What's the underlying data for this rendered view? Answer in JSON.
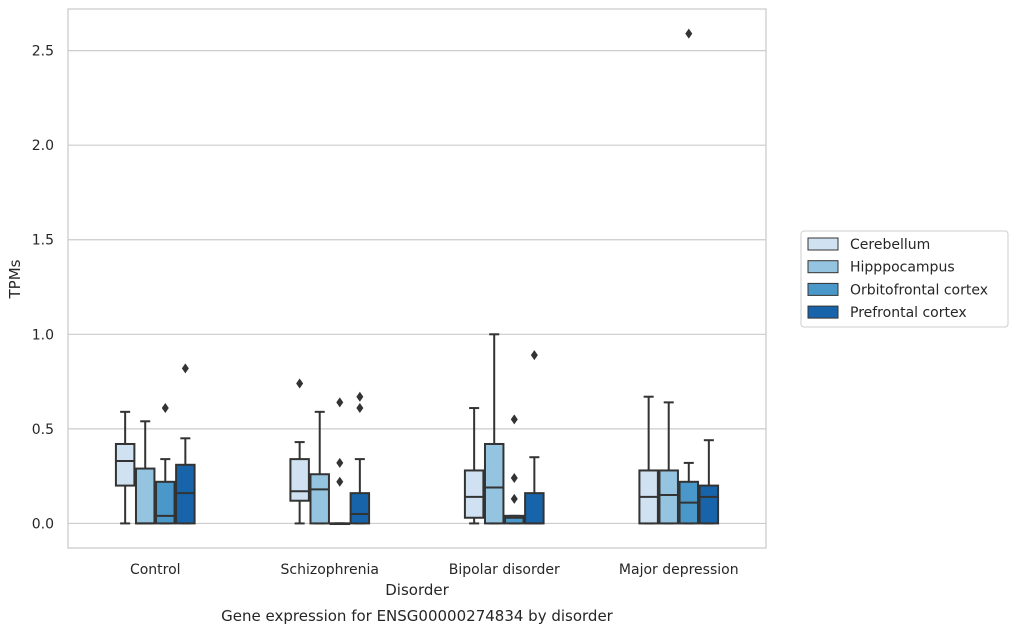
{
  "chart_data": {
    "type": "box",
    "caption": "Gene expression for ENSG00000274834 by disorder",
    "xlabel": "Disorder",
    "ylabel": "TPMs",
    "ylim": [
      -0.13,
      2.72
    ],
    "yticks": [
      0.0,
      0.5,
      1.0,
      1.5,
      2.0,
      2.5
    ],
    "ytick_labels": [
      "0.0",
      "0.5",
      "1.0",
      "1.5",
      "2.0",
      "2.5"
    ],
    "grid": "horizontal",
    "legend_position": "right",
    "categories": [
      "Control",
      "Schizophrenia",
      "Bipolar disorder",
      "Major depression"
    ],
    "series": [
      {
        "name": "Cerebellum",
        "color": "#d0e1f2",
        "boxes": [
          {
            "whisker_low": 0.0,
            "q1": 0.2,
            "median": 0.33,
            "q3": 0.42,
            "whisker_high": 0.59,
            "outliers": []
          },
          {
            "whisker_low": 0.0,
            "q1": 0.12,
            "median": 0.17,
            "q3": 0.34,
            "whisker_high": 0.43,
            "outliers": [
              0.74
            ]
          },
          {
            "whisker_low": 0.0,
            "q1": 0.03,
            "median": 0.14,
            "q3": 0.28,
            "whisker_high": 0.61,
            "outliers": []
          },
          {
            "whisker_low": 0.0,
            "q1": 0.0,
            "median": 0.14,
            "q3": 0.28,
            "whisker_high": 0.67,
            "outliers": []
          }
        ]
      },
      {
        "name": "Hipppocampus",
        "color": "#94c4df",
        "boxes": [
          {
            "whisker_low": 0.0,
            "q1": 0.0,
            "median": 0.0,
            "q3": 0.29,
            "whisker_high": 0.54,
            "outliers": []
          },
          {
            "whisker_low": 0.0,
            "q1": 0.0,
            "median": 0.18,
            "q3": 0.26,
            "whisker_high": 0.59,
            "outliers": []
          },
          {
            "whisker_low": 0.0,
            "q1": 0.0,
            "median": 0.19,
            "q3": 0.42,
            "whisker_high": 1.0,
            "outliers": []
          },
          {
            "whisker_low": 0.0,
            "q1": 0.0,
            "median": 0.15,
            "q3": 0.28,
            "whisker_high": 0.64,
            "outliers": []
          }
        ]
      },
      {
        "name": "Orbitofrontal cortex",
        "color": "#4a98c9",
        "boxes": [
          {
            "whisker_low": 0.0,
            "q1": 0.0,
            "median": 0.04,
            "q3": 0.22,
            "whisker_high": 0.34,
            "outliers": [
              0.61
            ]
          },
          {
            "whisker_low": 0.0,
            "q1": 0.0,
            "median": 0.0,
            "q3": 0.0,
            "whisker_high": 0.0,
            "outliers": [
              0.22,
              0.32,
              0.64
            ]
          },
          {
            "whisker_low": 0.0,
            "q1": 0.0,
            "median": 0.03,
            "q3": 0.04,
            "whisker_high": 0.04,
            "outliers": [
              0.13,
              0.24,
              0.55
            ]
          },
          {
            "whisker_low": 0.0,
            "q1": 0.0,
            "median": 0.11,
            "q3": 0.22,
            "whisker_high": 0.32,
            "outliers": [
              2.59
            ]
          }
        ]
      },
      {
        "name": "Prefrontal cortex",
        "color": "#1764ab",
        "boxes": [
          {
            "whisker_low": 0.0,
            "q1": 0.0,
            "median": 0.16,
            "q3": 0.31,
            "whisker_high": 0.45,
            "outliers": [
              0.82
            ]
          },
          {
            "whisker_low": 0.0,
            "q1": 0.0,
            "median": 0.05,
            "q3": 0.16,
            "whisker_high": 0.34,
            "outliers": [
              0.61,
              0.67
            ]
          },
          {
            "whisker_low": 0.0,
            "q1": 0.0,
            "median": 0.0,
            "q3": 0.16,
            "whisker_high": 0.35,
            "outliers": [
              0.89
            ]
          },
          {
            "whisker_low": 0.0,
            "q1": 0.0,
            "median": 0.14,
            "q3": 0.2,
            "whisker_high": 0.44,
            "outliers": []
          }
        ]
      }
    ]
  }
}
